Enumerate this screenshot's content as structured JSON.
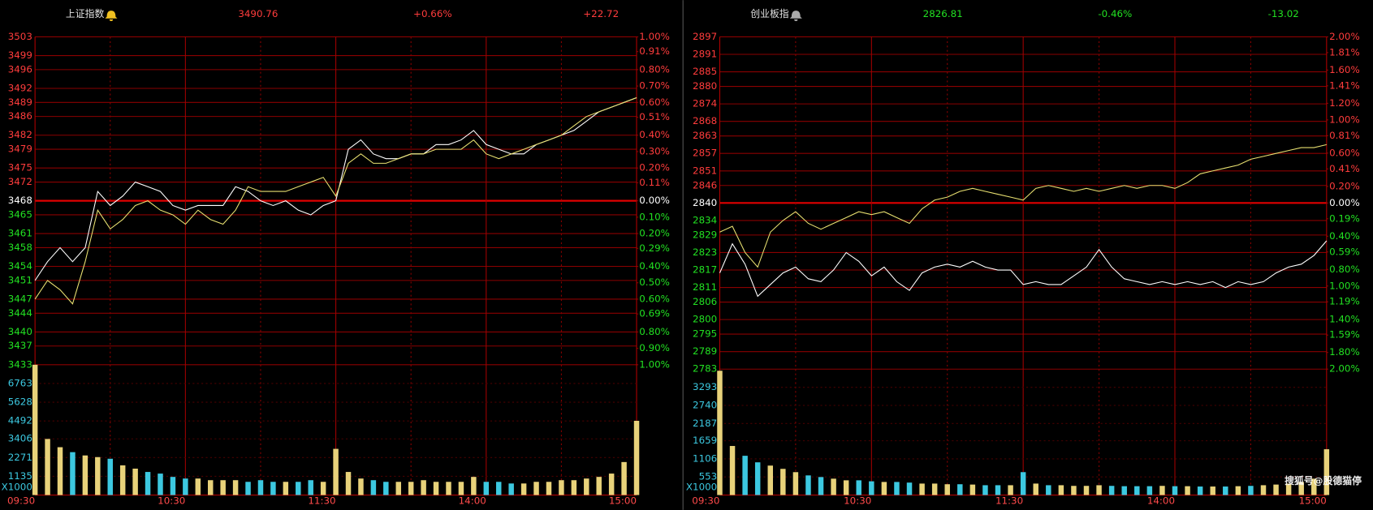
{
  "chart_data": [
    {
      "type": "line",
      "title": "上证指数",
      "last_price": 3490.76,
      "change_pct": {
        "value": 0.66,
        "label": "+0.66%"
      },
      "change": {
        "value": 22.72,
        "label": "+22.72"
      },
      "rise_color": "#ff3c3c",
      "fall_color": "#22e022",
      "x": [
        0,
        5,
        10,
        15,
        20,
        25,
        30,
        35,
        40,
        45,
        50,
        55,
        60,
        65,
        70,
        75,
        80,
        85,
        90,
        95,
        100,
        105,
        110,
        115,
        120,
        125,
        130,
        135,
        140,
        145,
        150,
        155,
        160,
        165,
        170,
        175,
        180,
        185,
        190,
        195,
        200,
        205,
        210,
        215,
        220,
        225,
        230,
        235,
        240
      ],
      "xlim": [
        0,
        240
      ],
      "xticks": [
        {
          "value": 0,
          "label": "09:30"
        },
        {
          "value": 60,
          "label": "10:30"
        },
        {
          "value": 120,
          "label": "11:30"
        },
        {
          "value": 180,
          "label": "14:00"
        },
        {
          "value": 240,
          "label": "15:00"
        }
      ],
      "series": [
        {
          "color": "#ffffff",
          "values": [
            3451,
            3455,
            3458,
            3455,
            3458,
            3470,
            3467,
            3469,
            3472,
            3471,
            3470,
            3467,
            3466,
            3467,
            3467,
            3467,
            3471,
            3470,
            3468,
            3467,
            3468,
            3466,
            3465,
            3467,
            3468,
            3479,
            3481,
            3478,
            3477,
            3477,
            3478,
            3478,
            3480,
            3480,
            3481,
            3483,
            3480,
            3479,
            3478,
            3478,
            3480,
            3481,
            3482,
            3483,
            3485,
            3487,
            3488,
            3489,
            3490
          ]
        },
        {
          "color": "#e8e070",
          "values": [
            3447,
            3451,
            3449,
            3446,
            3455,
            3466,
            3462,
            3464,
            3467,
            3468,
            3466,
            3465,
            3463,
            3466,
            3464,
            3463,
            3466,
            3471,
            3470,
            3470,
            3470,
            3471,
            3472,
            3473,
            3469,
            3476,
            3478,
            3476,
            3476,
            3477,
            3478,
            3478,
            3479,
            3479,
            3479,
            3481,
            3478,
            3477,
            3478,
            3479,
            3480,
            3481,
            3482,
            3484,
            3486,
            3487,
            3488,
            3489,
            3490
          ]
        }
      ],
      "ylim": [
        3433,
        3503
      ],
      "yticks": [
        3503,
        3499,
        3496,
        3492,
        3489,
        3486,
        3482,
        3479,
        3475,
        3472,
        3468,
        3465,
        3461,
        3458,
        3454,
        3451,
        3447,
        3444,
        3440,
        3437,
        3433
      ],
      "y2lim": [
        -1.0,
        1.0
      ],
      "y2ticks": [
        {
          "value": 1.0,
          "label": "1.00%"
        },
        {
          "value": 0.91,
          "label": "0.91%"
        },
        {
          "value": 0.8,
          "label": "0.80%"
        },
        {
          "value": 0.7,
          "label": "0.70%"
        },
        {
          "value": 0.6,
          "label": "0.60%"
        },
        {
          "value": 0.51,
          "label": "0.51%"
        },
        {
          "value": 0.4,
          "label": "0.40%"
        },
        {
          "value": 0.3,
          "label": "0.30%"
        },
        {
          "value": 0.2,
          "label": "0.20%"
        },
        {
          "value": 0.11,
          "label": "0.11%"
        },
        {
          "value": 0,
          "label": "0.00%"
        },
        {
          "value": -0.1,
          "label": "0.10%"
        },
        {
          "value": -0.2,
          "label": "0.20%"
        },
        {
          "value": -0.29,
          "label": "0.29%"
        },
        {
          "value": -0.4,
          "label": "0.40%"
        },
        {
          "value": -0.5,
          "label": "0.50%"
        },
        {
          "value": -0.6,
          "label": "0.60%"
        },
        {
          "value": -0.69,
          "label": "0.69%"
        },
        {
          "value": -0.8,
          "label": "0.80%"
        },
        {
          "value": -0.9,
          "label": "0.90%"
        },
        {
          "value": -1.0,
          "label": "1.00%"
        }
      ],
      "volume": {
        "label": "X1000",
        "color": "#3cc8e0",
        "up_color": "#e8d27a",
        "down_color": "#3cc8e0",
        "values": [
          7900,
          3400,
          2900,
          2600,
          2400,
          2300,
          2200,
          1800,
          1600,
          1400,
          1300,
          1100,
          1000,
          1000,
          900,
          900,
          900,
          800,
          900,
          800,
          800,
          800,
          900,
          800,
          2800,
          1400,
          1000,
          900,
          800,
          800,
          800,
          900,
          800,
          800,
          800,
          1100,
          800,
          800,
          700,
          700,
          800,
          800,
          900,
          900,
          1000,
          1100,
          1300,
          2000,
          4500
        ],
        "ylim": [
          0,
          7900
        ],
        "yticks": [
          1135,
          2271,
          3406,
          4492,
          5628,
          6763
        ]
      },
      "grid": true
    },
    {
      "type": "line",
      "title": "创业板指",
      "last_price": 2826.81,
      "change_pct": {
        "value": -0.46,
        "label": "-0.46%"
      },
      "change": {
        "value": -13.02,
        "label": "-13.02"
      },
      "rise_color": "#ff3c3c",
      "fall_color": "#22e022",
      "x": [
        0,
        5,
        10,
        15,
        20,
        25,
        30,
        35,
        40,
        45,
        50,
        55,
        60,
        65,
        70,
        75,
        80,
        85,
        90,
        95,
        100,
        105,
        110,
        115,
        120,
        125,
        130,
        135,
        140,
        145,
        150,
        155,
        160,
        165,
        170,
        175,
        180,
        185,
        190,
        195,
        200,
        205,
        210,
        215,
        220,
        225,
        230,
        235,
        240
      ],
      "xlim": [
        0,
        240
      ],
      "xticks": [
        {
          "value": 0,
          "label": "09:30"
        },
        {
          "value": 60,
          "label": "10:30"
        },
        {
          "value": 120,
          "label": "11:30"
        },
        {
          "value": 180,
          "label": "14:00"
        },
        {
          "value": 240,
          "label": "15:00"
        }
      ],
      "series": [
        {
          "color": "#ffffff",
          "values": [
            2816,
            2826,
            2819,
            2808,
            2812,
            2816,
            2818,
            2814,
            2813,
            2817,
            2823,
            2820,
            2815,
            2818,
            2813,
            2810,
            2816,
            2818,
            2819,
            2818,
            2820,
            2818,
            2817,
            2817,
            2812,
            2813,
            2812,
            2812,
            2815,
            2818,
            2824,
            2818,
            2814,
            2813,
            2812,
            2813,
            2812,
            2813,
            2812,
            2813,
            2811,
            2813,
            2812,
            2813,
            2816,
            2818,
            2819,
            2822,
            2827
          ]
        },
        {
          "color": "#e8e070",
          "values": [
            2830,
            2832,
            2823,
            2818,
            2830,
            2834,
            2837,
            2833,
            2831,
            2833,
            2835,
            2837,
            2836,
            2837,
            2835,
            2833,
            2838,
            2841,
            2842,
            2844,
            2845,
            2844,
            2843,
            2842,
            2841,
            2845,
            2846,
            2845,
            2844,
            2845,
            2844,
            2845,
            2846,
            2845,
            2846,
            2846,
            2845,
            2847,
            2850,
            2851,
            2852,
            2853,
            2855,
            2856,
            2857,
            2858,
            2859,
            2859,
            2860
          ]
        }
      ],
      "ylim": [
        2783,
        2897
      ],
      "yticks": [
        2897,
        2891,
        2885,
        2880,
        2874,
        2868,
        2863,
        2857,
        2851,
        2846,
        2840,
        2834,
        2829,
        2823,
        2817,
        2811,
        2806,
        2800,
        2795,
        2789,
        2783
      ],
      "y2lim": [
        -2.0,
        2.0
      ],
      "y2ticks": [
        {
          "value": 2.0,
          "label": "2.00%"
        },
        {
          "value": 1.81,
          "label": "1.81%"
        },
        {
          "value": 1.6,
          "label": "1.60%"
        },
        {
          "value": 1.41,
          "label": "1.41%"
        },
        {
          "value": 1.2,
          "label": "1.20%"
        },
        {
          "value": 1.0,
          "label": "1.00%"
        },
        {
          "value": 0.81,
          "label": "0.81%"
        },
        {
          "value": 0.6,
          "label": "0.60%"
        },
        {
          "value": 0.41,
          "label": "0.41%"
        },
        {
          "value": 0.2,
          "label": "0.20%"
        },
        {
          "value": 0,
          "label": "0.00%"
        },
        {
          "value": -0.19,
          "label": "0.19%"
        },
        {
          "value": -0.4,
          "label": "0.40%"
        },
        {
          "value": -0.59,
          "label": "0.59%"
        },
        {
          "value": -0.8,
          "label": "0.80%"
        },
        {
          "value": -1.0,
          "label": "1.00%"
        },
        {
          "value": -1.19,
          "label": "1.19%"
        },
        {
          "value": -1.4,
          "label": "1.40%"
        },
        {
          "value": -1.59,
          "label": "1.59%"
        },
        {
          "value": -1.8,
          "label": "1.80%"
        },
        {
          "value": -2.0,
          "label": "2.00%"
        }
      ],
      "volume": {
        "label": "X1000",
        "color": "#3cc8e0",
        "up_color": "#e8d27a",
        "down_color": "#3cc8e0",
        "values": [
          3800,
          1500,
          1200,
          1000,
          900,
          800,
          700,
          600,
          550,
          500,
          450,
          450,
          420,
          400,
          400,
          380,
          350,
          350,
          330,
          330,
          320,
          300,
          300,
          300,
          700,
          350,
          300,
          300,
          280,
          280,
          300,
          280,
          270,
          270,
          270,
          280,
          270,
          270,
          260,
          260,
          260,
          270,
          280,
          300,
          320,
          350,
          400,
          500,
          1400
        ],
        "ylim": [
          0,
          3850
        ],
        "yticks": [
          553,
          1106,
          1659,
          2187,
          2740,
          3293
        ]
      },
      "grid": true
    }
  ],
  "watermark": "搜狐号@股德猫停"
}
